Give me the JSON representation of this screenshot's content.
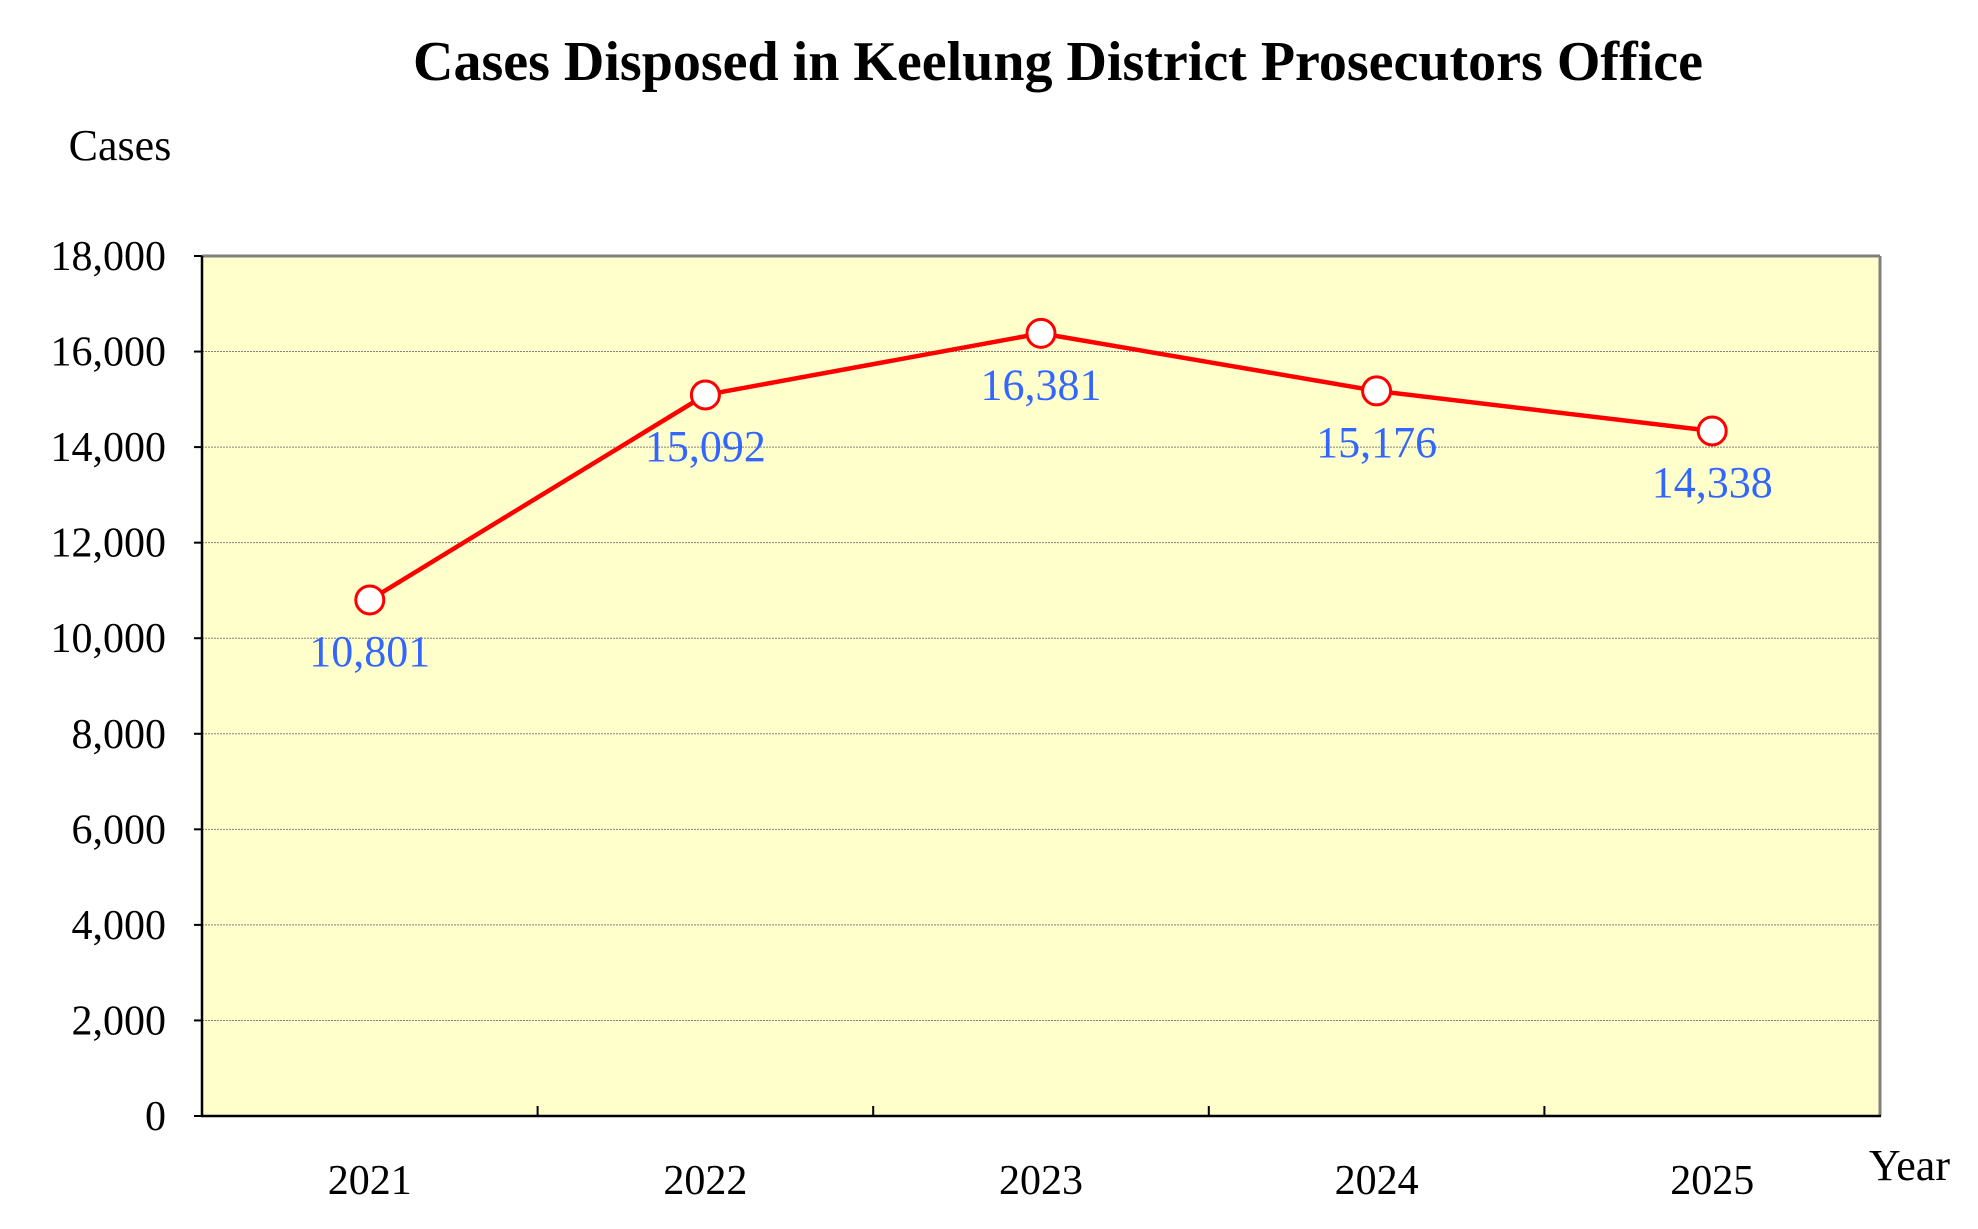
{
  "chart_data": {
    "type": "line",
    "title": "Cases Disposed in Keelung District Prosecutors Office",
    "ylabel": "Cases",
    "xlabel": "Year",
    "categories": [
      "2021",
      "2022",
      "2023",
      "2024",
      "2025"
    ],
    "series": [
      {
        "name": "Cases Disposed",
        "values": [
          10801,
          15092,
          16381,
          15176,
          14338
        ],
        "value_labels": [
          "10,801",
          "15,092",
          "16,381",
          "15,176",
          "14,338"
        ]
      }
    ],
    "ylim": [
      0,
      18000
    ],
    "yticks": [
      0,
      2000,
      4000,
      6000,
      8000,
      10000,
      12000,
      14000,
      16000,
      18000
    ],
    "ytick_labels": [
      "0",
      "2,000",
      "4,000",
      "6,000",
      "8,000",
      "10,000",
      "12,000",
      "14,000",
      "16,000",
      "18,000"
    ],
    "grid": true,
    "legend": "none"
  },
  "colors": {
    "plot_background": "#FFFFCC",
    "line": "#FF0000",
    "marker_fill": "#FFFFFF",
    "data_label": "#3366FF",
    "grid": "#808080",
    "axis": "#000000",
    "frame": "#808080"
  }
}
